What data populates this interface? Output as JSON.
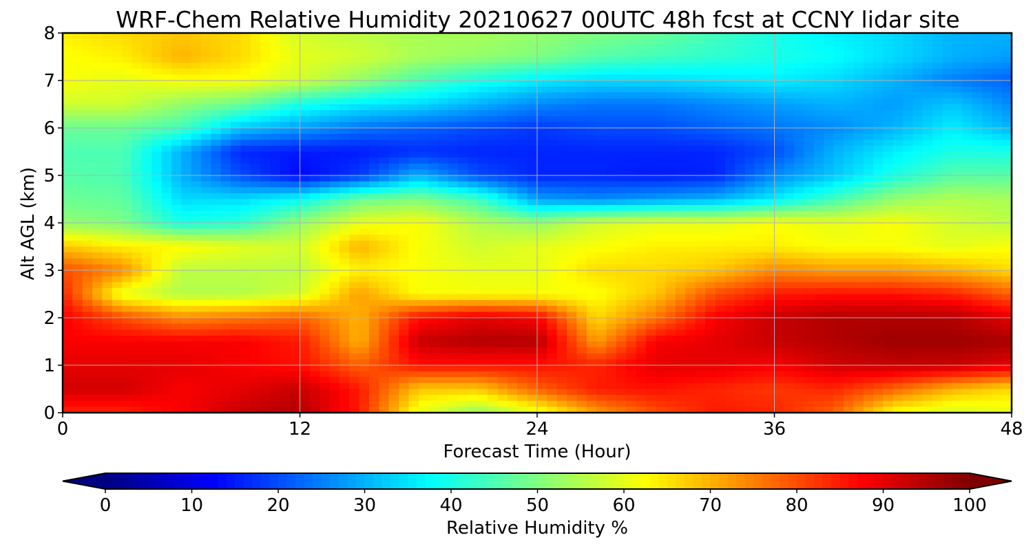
{
  "chart_data": {
    "type": "heatmap",
    "title": "WRF-Chem Relative Humidity 20210627 00UTC 48h fcst at CCNY lidar site",
    "xlabel": "Forecast Time (Hour)",
    "ylabel": "Alt AGL (km)",
    "xlim": [
      0,
      48
    ],
    "ylim": [
      0,
      8
    ],
    "xticks": [
      0,
      12,
      24,
      36,
      48
    ],
    "yticks": [
      0,
      1,
      2,
      3,
      4,
      5,
      6,
      7,
      8
    ],
    "grid": true,
    "colormap": "jet",
    "colorbar": {
      "label": "Relative Humidity %",
      "range": [
        0,
        100
      ],
      "ticks": [
        0,
        10,
        20,
        30,
        40,
        50,
        60,
        70,
        80,
        90,
        100
      ],
      "extend": "both",
      "orientation": "horizontal",
      "placement": "bottom"
    },
    "z_units": "Relative Humidity %",
    "x": [
      0,
      3,
      6,
      9,
      12,
      15,
      18,
      21,
      24,
      27,
      30,
      33,
      36,
      39,
      42,
      45,
      48
    ],
    "y": [
      0,
      0.5,
      1,
      1.5,
      2,
      2.5,
      3,
      3.5,
      4,
      4.5,
      5,
      5.5,
      6,
      6.5,
      7,
      7.5,
      8
    ],
    "z": [
      [
        84,
        84,
        88,
        93,
        95,
        85,
        60,
        52,
        60,
        72,
        80,
        85,
        84,
        78,
        62,
        58,
        60
      ],
      [
        92,
        92,
        88,
        90,
        93,
        85,
        68,
        68,
        78,
        85,
        86,
        84,
        82,
        84,
        78,
        70,
        66
      ],
      [
        90,
        90,
        90,
        88,
        86,
        78,
        86,
        86,
        86,
        84,
        90,
        90,
        88,
        92,
        93,
        93,
        90
      ],
      [
        88,
        88,
        88,
        88,
        85,
        70,
        93,
        95,
        95,
        72,
        88,
        90,
        93,
        95,
        97,
        97,
        96
      ],
      [
        88,
        80,
        74,
        76,
        78,
        70,
        86,
        90,
        88,
        66,
        76,
        88,
        93,
        95,
        95,
        95,
        90
      ],
      [
        84,
        60,
        55,
        55,
        58,
        72,
        62,
        62,
        62,
        62,
        68,
        80,
        85,
        86,
        86,
        84,
        78
      ],
      [
        80,
        74,
        56,
        56,
        56,
        64,
        62,
        60,
        60,
        66,
        66,
        68,
        74,
        72,
        72,
        70,
        66
      ],
      [
        68,
        64,
        63,
        60,
        58,
        70,
        62,
        58,
        60,
        62,
        64,
        64,
        64,
        62,
        62,
        60,
        62
      ],
      [
        52,
        50,
        40,
        42,
        52,
        60,
        62,
        55,
        52,
        58,
        60,
        60,
        62,
        60,
        62,
        58,
        56
      ],
      [
        48,
        47,
        34,
        34,
        38,
        48,
        50,
        44,
        28,
        26,
        28,
        30,
        36,
        44,
        52,
        55,
        54
      ],
      [
        46,
        45,
        30,
        20,
        13,
        18,
        30,
        20,
        16,
        16,
        15,
        16,
        26,
        32,
        40,
        46,
        46
      ],
      [
        45,
        45,
        30,
        16,
        15,
        15,
        17,
        16,
        16,
        16,
        16,
        16,
        20,
        30,
        36,
        40,
        40
      ],
      [
        48,
        48,
        44,
        32,
        28,
        24,
        22,
        20,
        18,
        20,
        20,
        22,
        24,
        26,
        30,
        36,
        30
      ],
      [
        58,
        58,
        52,
        48,
        40,
        36,
        34,
        30,
        26,
        24,
        24,
        26,
        28,
        30,
        28,
        32,
        26
      ],
      [
        62,
        60,
        62,
        62,
        58,
        52,
        45,
        40,
        36,
        34,
        34,
        35,
        36,
        34,
        30,
        25,
        22
      ],
      [
        62,
        64,
        70,
        66,
        60,
        58,
        54,
        52,
        50,
        46,
        44,
        42,
        40,
        38,
        34,
        30,
        28
      ],
      [
        64,
        66,
        68,
        66,
        58,
        56,
        54,
        54,
        52,
        50,
        48,
        44,
        40,
        36,
        34,
        30,
        30
      ]
    ]
  }
}
